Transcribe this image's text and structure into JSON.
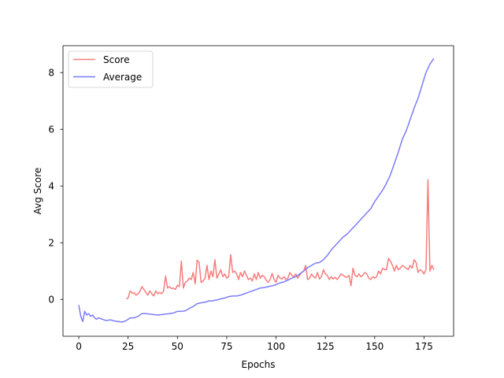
{
  "chart_data": {
    "type": "line",
    "xlabel": "Epochs",
    "ylabel": "Avg Score",
    "xlim": [
      -8,
      190
    ],
    "ylim": [
      -1.3,
      8.95
    ],
    "xticks": [
      0,
      25,
      50,
      75,
      100,
      125,
      150,
      175
    ],
    "yticks": [
      0,
      2,
      4,
      6,
      8
    ],
    "grid": false,
    "legend_position": "top-left",
    "series": [
      {
        "name": "Score",
        "color": "#f77c7c",
        "points": [
          [
            24,
            0.02
          ],
          [
            25,
            0.05
          ],
          [
            26,
            0.3
          ],
          [
            27,
            0.22
          ],
          [
            28,
            0.24
          ],
          [
            29,
            0.15
          ],
          [
            30,
            0.2
          ],
          [
            31,
            0.28
          ],
          [
            32,
            0.45
          ],
          [
            33,
            0.35
          ],
          [
            34,
            0.25
          ],
          [
            35,
            0.15
          ],
          [
            36,
            0.3
          ],
          [
            37,
            0.2
          ],
          [
            38,
            0.12
          ],
          [
            39,
            0.3
          ],
          [
            40,
            0.2
          ],
          [
            41,
            0.25
          ],
          [
            42,
            0.2
          ],
          [
            43,
            0.3
          ],
          [
            44,
            0.82
          ],
          [
            45,
            0.4
          ],
          [
            46,
            0.45
          ],
          [
            47,
            0.38
          ],
          [
            48,
            0.4
          ],
          [
            49,
            0.35
          ],
          [
            50,
            0.5
          ],
          [
            51,
            0.45
          ],
          [
            52,
            1.35
          ],
          [
            53,
            0.4
          ],
          [
            54,
            0.6
          ],
          [
            55,
            0.65
          ],
          [
            56,
            0.75
          ],
          [
            57,
            0.7
          ],
          [
            58,
            0.95
          ],
          [
            59,
            0.55
          ],
          [
            60,
            1.38
          ],
          [
            61,
            1.3
          ],
          [
            62,
            0.6
          ],
          [
            63,
            0.65
          ],
          [
            64,
            0.75
          ],
          [
            65,
            1.2
          ],
          [
            66,
            0.7
          ],
          [
            67,
            1.0
          ],
          [
            68,
            0.8
          ],
          [
            69,
            1.4
          ],
          [
            70,
            0.75
          ],
          [
            71,
            0.9
          ],
          [
            72,
            1.05
          ],
          [
            73,
            0.8
          ],
          [
            74,
            0.9
          ],
          [
            75,
            0.75
          ],
          [
            76,
            0.8
          ],
          [
            77,
            1.58
          ],
          [
            78,
            0.95
          ],
          [
            79,
            1.0
          ],
          [
            80,
            0.9
          ],
          [
            81,
            0.7
          ],
          [
            82,
            0.95
          ],
          [
            83,
            0.8
          ],
          [
            84,
            1.0
          ],
          [
            85,
            0.85
          ],
          [
            86,
            0.7
          ],
          [
            87,
            0.75
          ],
          [
            88,
            0.65
          ],
          [
            89,
            0.9
          ],
          [
            90,
            0.7
          ],
          [
            91,
            0.95
          ],
          [
            92,
            0.75
          ],
          [
            93,
            0.85
          ],
          [
            94,
            0.8
          ],
          [
            95,
            0.68
          ],
          [
            96,
            0.6
          ],
          [
            97,
            0.7
          ],
          [
            98,
            0.92
          ],
          [
            99,
            0.7
          ],
          [
            100,
            0.6
          ],
          [
            101,
            0.85
          ],
          [
            102,
            0.75
          ],
          [
            103,
            0.72
          ],
          [
            104,
            0.8
          ],
          [
            105,
            0.7
          ],
          [
            106,
            0.75
          ],
          [
            107,
            0.95
          ],
          [
            108,
            0.85
          ],
          [
            109,
            0.8
          ],
          [
            110,
            0.9
          ],
          [
            111,
            0.75
          ],
          [
            112,
            0.85
          ],
          [
            113,
            0.95
          ],
          [
            114,
            1.0
          ],
          [
            115,
            1.2
          ],
          [
            116,
            0.7
          ],
          [
            117,
            0.75
          ],
          [
            118,
            0.9
          ],
          [
            119,
            0.8
          ],
          [
            120,
            0.75
          ],
          [
            121,
            0.95
          ],
          [
            122,
            0.72
          ],
          [
            123,
            0.8
          ],
          [
            124,
            1.05
          ],
          [
            125,
            0.9
          ],
          [
            126,
            0.85
          ],
          [
            127,
            0.7
          ],
          [
            128,
            0.8
          ],
          [
            129,
            0.72
          ],
          [
            130,
            0.78
          ],
          [
            131,
            0.7
          ],
          [
            132,
            0.8
          ],
          [
            133,
            0.9
          ],
          [
            134,
            0.85
          ],
          [
            135,
            0.8
          ],
          [
            136,
            0.78
          ],
          [
            137,
            0.85
          ],
          [
            138,
            0.48
          ],
          [
            139,
            1.1
          ],
          [
            140,
            0.85
          ],
          [
            141,
            0.8
          ],
          [
            142,
            0.9
          ],
          [
            143,
            0.8
          ],
          [
            144,
            0.85
          ],
          [
            145,
            0.95
          ],
          [
            146,
            0.9
          ],
          [
            147,
            0.75
          ],
          [
            148,
            0.7
          ],
          [
            149,
            0.8
          ],
          [
            150,
            0.75
          ],
          [
            151,
            0.8
          ],
          [
            152,
            1.0
          ],
          [
            153,
            0.9
          ],
          [
            154,
            1.1
          ],
          [
            155,
            1.05
          ],
          [
            156,
            1.05
          ],
          [
            157,
            1.45
          ],
          [
            158,
            1.35
          ],
          [
            159,
            1.2
          ],
          [
            160,
            1.0
          ],
          [
            161,
            1.2
          ],
          [
            162,
            1.05
          ],
          [
            163,
            1.1
          ],
          [
            164,
            1.2
          ],
          [
            165,
            1.15
          ],
          [
            166,
            1.1
          ],
          [
            167,
            1.05
          ],
          [
            168,
            1.2
          ],
          [
            169,
            1.1
          ],
          [
            170,
            1.4
          ],
          [
            171,
            1.3
          ],
          [
            172,
            0.95
          ],
          [
            173,
            1.05
          ],
          [
            174,
            1.0
          ],
          [
            175,
            0.9
          ],
          [
            176,
            1.05
          ],
          [
            177,
            4.22
          ],
          [
            178,
            1.0
          ],
          [
            179,
            1.2
          ],
          [
            180,
            1.05
          ]
        ]
      },
      {
        "name": "Average",
        "color": "#7c7cf7",
        "points": [
          [
            0,
            -0.2
          ],
          [
            1,
            -0.6
          ],
          [
            2,
            -0.78
          ],
          [
            3,
            -0.42
          ],
          [
            4,
            -0.55
          ],
          [
            5,
            -0.5
          ],
          [
            6,
            -0.6
          ],
          [
            7,
            -0.55
          ],
          [
            8,
            -0.65
          ],
          [
            9,
            -0.7
          ],
          [
            10,
            -0.65
          ],
          [
            12,
            -0.7
          ],
          [
            14,
            -0.75
          ],
          [
            16,
            -0.72
          ],
          [
            18,
            -0.76
          ],
          [
            20,
            -0.78
          ],
          [
            22,
            -0.8
          ],
          [
            24,
            -0.75
          ],
          [
            26,
            -0.65
          ],
          [
            28,
            -0.65
          ],
          [
            30,
            -0.6
          ],
          [
            32,
            -0.5
          ],
          [
            34,
            -0.5
          ],
          [
            36,
            -0.52
          ],
          [
            40,
            -0.55
          ],
          [
            44,
            -0.52
          ],
          [
            46,
            -0.5
          ],
          [
            48,
            -0.48
          ],
          [
            50,
            -0.42
          ],
          [
            52,
            -0.42
          ],
          [
            54,
            -0.4
          ],
          [
            56,
            -0.32
          ],
          [
            58,
            -0.25
          ],
          [
            60,
            -0.15
          ],
          [
            62,
            -0.12
          ],
          [
            64,
            -0.1
          ],
          [
            66,
            -0.05
          ],
          [
            68,
            -0.05
          ],
          [
            70,
            -0.02
          ],
          [
            72,
            0.02
          ],
          [
            74,
            0.05
          ],
          [
            76,
            0.1
          ],
          [
            78,
            0.12
          ],
          [
            80,
            0.12
          ],
          [
            82,
            0.15
          ],
          [
            84,
            0.2
          ],
          [
            86,
            0.25
          ],
          [
            88,
            0.3
          ],
          [
            90,
            0.35
          ],
          [
            92,
            0.4
          ],
          [
            94,
            0.42
          ],
          [
            96,
            0.45
          ],
          [
            98,
            0.48
          ],
          [
            100,
            0.52
          ],
          [
            102,
            0.58
          ],
          [
            104,
            0.62
          ],
          [
            106,
            0.68
          ],
          [
            108,
            0.75
          ],
          [
            110,
            0.8
          ],
          [
            112,
            0.9
          ],
          [
            114,
            1.0
          ],
          [
            116,
            1.12
          ],
          [
            118,
            1.2
          ],
          [
            120,
            1.28
          ],
          [
            122,
            1.3
          ],
          [
            124,
            1.4
          ],
          [
            126,
            1.55
          ],
          [
            128,
            1.75
          ],
          [
            130,
            1.9
          ],
          [
            132,
            2.05
          ],
          [
            134,
            2.2
          ],
          [
            136,
            2.3
          ],
          [
            138,
            2.45
          ],
          [
            140,
            2.6
          ],
          [
            142,
            2.75
          ],
          [
            144,
            2.9
          ],
          [
            146,
            3.05
          ],
          [
            148,
            3.2
          ],
          [
            150,
            3.45
          ],
          [
            152,
            3.65
          ],
          [
            154,
            3.85
          ],
          [
            156,
            4.1
          ],
          [
            158,
            4.4
          ],
          [
            160,
            4.8
          ],
          [
            162,
            5.2
          ],
          [
            164,
            5.65
          ],
          [
            166,
            5.95
          ],
          [
            168,
            6.35
          ],
          [
            170,
            6.75
          ],
          [
            172,
            7.1
          ],
          [
            174,
            7.55
          ],
          [
            176,
            8.0
          ],
          [
            178,
            8.3
          ],
          [
            180,
            8.5
          ]
        ]
      }
    ]
  }
}
